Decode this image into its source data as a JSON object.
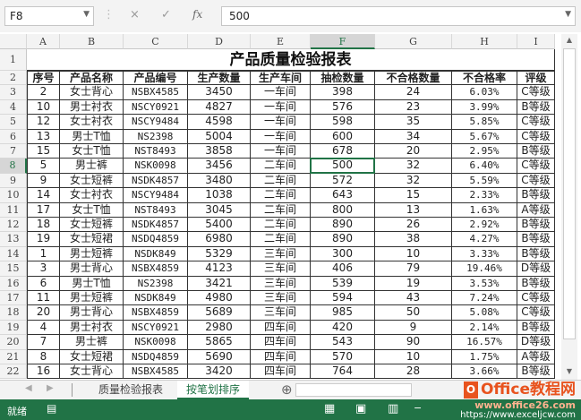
{
  "formula_bar": {
    "name_box": "F8",
    "cancel_icon": "×",
    "enter_icon": "✓",
    "fx_label": "fx",
    "value": "500"
  },
  "columns": [
    "A",
    "B",
    "C",
    "D",
    "E",
    "F",
    "G",
    "H",
    "I"
  ],
  "selected_column": "F",
  "selected_row": 8,
  "title": "产品质量检验报表",
  "headers": [
    "序号",
    "产品名称",
    "产品编号",
    "生产数量",
    "生产车间",
    "抽检数量",
    "不合格数量",
    "不合格率",
    "评级"
  ],
  "rows": [
    [
      "2",
      "女士背心",
      "NSBX4585",
      "3450",
      "一车间",
      "398",
      "24",
      "6.03%",
      "C等级"
    ],
    [
      "10",
      "男士衬衣",
      "NSCY0921",
      "4827",
      "一车间",
      "576",
      "23",
      "3.99%",
      "B等级"
    ],
    [
      "12",
      "女士衬衣",
      "NSCY9484",
      "4598",
      "一车间",
      "598",
      "35",
      "5.85%",
      "C等级"
    ],
    [
      "13",
      "男士T恤",
      "NS2398",
      "5004",
      "一车间",
      "600",
      "34",
      "5.67%",
      "C等级"
    ],
    [
      "15",
      "女士T恤",
      "NST8493",
      "3858",
      "一车间",
      "678",
      "20",
      "2.95%",
      "B等级"
    ],
    [
      "5",
      "男士裤",
      "NSK0098",
      "3456",
      "二车间",
      "500",
      "32",
      "6.40%",
      "C等级"
    ],
    [
      "9",
      "女士短裤",
      "NSDK4857",
      "3480",
      "二车间",
      "572",
      "32",
      "5.59%",
      "C等级"
    ],
    [
      "14",
      "女士衬衣",
      "NSCY9484",
      "1038",
      "二车间",
      "643",
      "15",
      "2.33%",
      "B等级"
    ],
    [
      "17",
      "女士T恤",
      "NST8493",
      "3045",
      "二车间",
      "800",
      "13",
      "1.63%",
      "A等级"
    ],
    [
      "18",
      "女士短裤",
      "NSDK4857",
      "5400",
      "二车间",
      "890",
      "26",
      "2.92%",
      "B等级"
    ],
    [
      "19",
      "女士短裙",
      "NSDQ4859",
      "6980",
      "二车间",
      "890",
      "38",
      "4.27%",
      "B等级"
    ],
    [
      "1",
      "男士短裤",
      "NSDK849",
      "5329",
      "三车间",
      "300",
      "10",
      "3.33%",
      "B等级"
    ],
    [
      "3",
      "男士背心",
      "NSBX4859",
      "4123",
      "三车间",
      "406",
      "79",
      "19.46%",
      "D等级"
    ],
    [
      "6",
      "男士T恤",
      "NS2398",
      "3421",
      "三车间",
      "539",
      "19",
      "3.53%",
      "B等级"
    ],
    [
      "11",
      "男士短裤",
      "NSDK849",
      "4980",
      "三车间",
      "594",
      "43",
      "7.24%",
      "C等级"
    ],
    [
      "20",
      "男士背心",
      "NSBX4859",
      "5689",
      "三车间",
      "985",
      "50",
      "5.08%",
      "C等级"
    ],
    [
      "4",
      "男士衬衣",
      "NSCY0921",
      "2980",
      "四车间",
      "420",
      "9",
      "2.14%",
      "B等级"
    ],
    [
      "7",
      "男士裤",
      "NSK0098",
      "5865",
      "四车间",
      "543",
      "90",
      "16.57%",
      "D等级"
    ],
    [
      "8",
      "女士短裙",
      "NSDQ4859",
      "5690",
      "四车间",
      "570",
      "10",
      "1.75%",
      "A等级"
    ],
    [
      "16",
      "女士背心",
      "NSBX4585",
      "3420",
      "四车间",
      "764",
      "28",
      "3.66%",
      "B等级"
    ]
  ],
  "sheet_tabs": [
    {
      "label": "质量检验报表",
      "active": false
    },
    {
      "label": "按笔划排序",
      "active": true
    }
  ],
  "add_sheet_icon": "⊕",
  "status": {
    "ready": "就绪"
  },
  "watermark": {
    "brand": "Office教程网",
    "url1": "www.office26.com",
    "url2": "https://www.exceljcw.com"
  },
  "colors": {
    "accent": "#217346"
  }
}
